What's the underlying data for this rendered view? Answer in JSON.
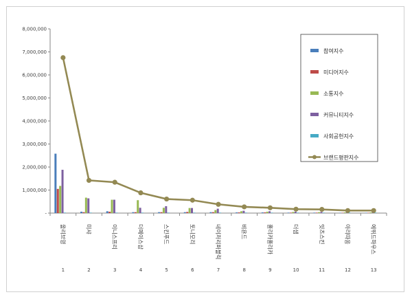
{
  "chart_data": {
    "type": "bar",
    "title": "",
    "xlabel": "",
    "ylabel": "",
    "ylim": [
      0,
      8000000
    ],
    "yticks": [
      "-",
      "1,000,000",
      "2,000,000",
      "3,000,000",
      "4,000,000",
      "5,000,000",
      "6,000,000",
      "7,000,000",
      "8,000,000"
    ],
    "grid": false,
    "legend_position": "right",
    "x_numbers": [
      "1",
      "2",
      "3",
      "4",
      "5",
      "6",
      "7",
      "8",
      "9",
      "10",
      "11",
      "12",
      "13"
    ],
    "categories": [
      "올리브영",
      "미샤",
      "이니스프리",
      "더페이스샵",
      "스킨푸드",
      "토니모리",
      "네이처리퍼블릭",
      "비욘드",
      "홀리카홀리카",
      "더샘",
      "잇츠스킨",
      "아리따움",
      "에뛰드하우스"
    ],
    "series": [
      {
        "name": "참여지수",
        "kind": "bar",
        "color": "#4a7ebb",
        "values": [
          2580000,
          60000,
          80000,
          40000,
          40000,
          40000,
          40000,
          30000,
          30000,
          20000,
          20000,
          15000,
          15000
        ]
      },
      {
        "name": "미디어지수",
        "kind": "bar",
        "color": "#be4b48",
        "values": [
          1050000,
          40000,
          60000,
          40000,
          40000,
          50000,
          40000,
          30000,
          30000,
          20000,
          20000,
          15000,
          15000
        ]
      },
      {
        "name": "소통지수",
        "kind": "bar",
        "color": "#98b954",
        "values": [
          1180000,
          670000,
          580000,
          560000,
          230000,
          220000,
          130000,
          80000,
          60000,
          50000,
          40000,
          30000,
          30000
        ]
      },
      {
        "name": "커뮤니티지수",
        "kind": "bar",
        "color": "#7d60a0",
        "values": [
          1880000,
          640000,
          580000,
          230000,
          300000,
          220000,
          190000,
          100000,
          80000,
          60000,
          50000,
          40000,
          40000
        ]
      },
      {
        "name": "사회공헌지수",
        "kind": "bar",
        "color": "#46aac5",
        "values": [
          20000,
          20000,
          20000,
          20000,
          20000,
          20000,
          20000,
          20000,
          20000,
          20000,
          20000,
          20000,
          20000
        ]
      },
      {
        "name": "브랜드평판지수",
        "kind": "line",
        "color": "#938953",
        "values": [
          6750000,
          1420000,
          1340000,
          880000,
          610000,
          560000,
          380000,
          270000,
          230000,
          170000,
          160000,
          110000,
          110000
        ]
      }
    ]
  }
}
